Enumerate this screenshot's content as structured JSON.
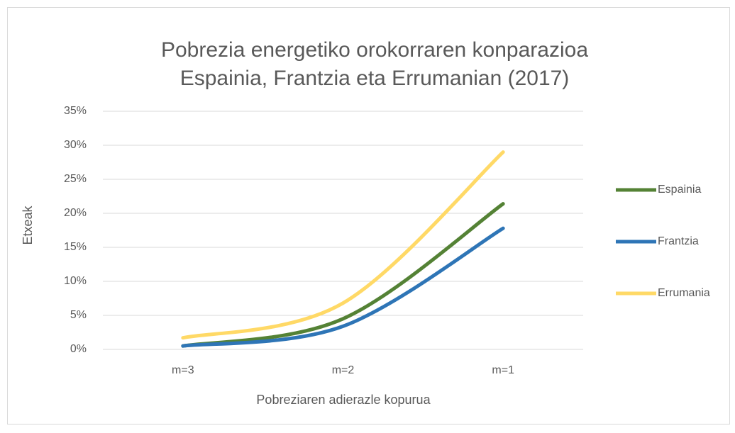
{
  "chart_data": {
    "type": "line",
    "title": [
      "Pobrezia energetiko orokorraren konparazioa",
      "Espainia, Frantzia eta Errumanian (2017)"
    ],
    "x_label": "Pobreziaren adierazle kopurua",
    "y_label": "Etxeak",
    "categories": [
      "m=3",
      "m=2",
      "m=1"
    ],
    "series": [
      {
        "name": "Espainia",
        "color": "#548235",
        "values": [
          0.5,
          4.5,
          21.4
        ]
      },
      {
        "name": "Frantzia",
        "color": "#2e75b6",
        "values": [
          0.5,
          3.4,
          17.8
        ]
      },
      {
        "name": "Errumania",
        "color": "#ffd966",
        "values": [
          1.7,
          6.8,
          29.0
        ]
      }
    ],
    "ylim": [
      0,
      35
    ],
    "yticks": [
      {
        "value": 0,
        "label": "0%"
      },
      {
        "value": 5,
        "label": "5%"
      },
      {
        "value": 10,
        "label": "10%"
      },
      {
        "value": 15,
        "label": "15%"
      },
      {
        "value": 20,
        "label": "20%"
      },
      {
        "value": 25,
        "label": "25%"
      },
      {
        "value": 30,
        "label": "30%"
      },
      {
        "value": 35,
        "label": "35%"
      }
    ],
    "grid": true,
    "smooth": true,
    "legend": "right"
  }
}
